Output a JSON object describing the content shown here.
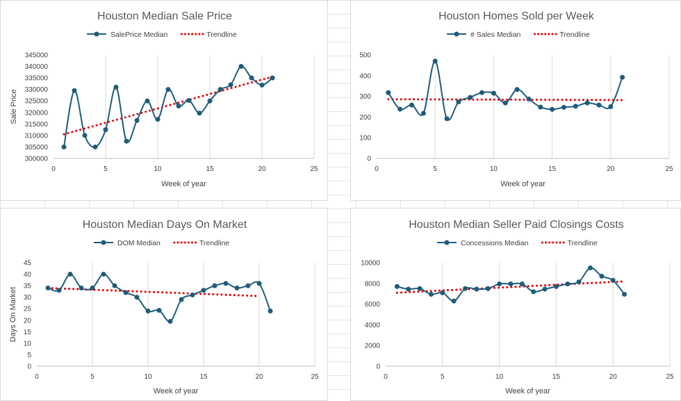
{
  "chart_data": [
    {
      "type": "line",
      "title": "Houston Median Sale Price",
      "xlabel": "Week of year",
      "ylabel": "Sale Price",
      "xlim": [
        0,
        25
      ],
      "ylim": [
        300000,
        345000
      ],
      "xticks": [
        0,
        5,
        10,
        15,
        20,
        25
      ],
      "yticks": [
        300000,
        305000,
        310000,
        315000,
        320000,
        325000,
        330000,
        335000,
        340000,
        345000
      ],
      "grid": "vertical",
      "legend": "top-center",
      "x": [
        1,
        2,
        3,
        4,
        5,
        6,
        7,
        8,
        9,
        10,
        11,
        12,
        13,
        14,
        15,
        16,
        17,
        18,
        19,
        20,
        21
      ],
      "series": [
        {
          "name": "SalePrice Median",
          "style": "line-markers",
          "color": "#1f5c7a",
          "values": [
            305000,
            329500,
            310000,
            305000,
            312500,
            331000,
            307500,
            316500,
            325000,
            317000,
            330000,
            322800,
            325200,
            319700,
            325000,
            330000,
            332000,
            340000,
            335000,
            331900,
            335000
          ]
        },
        {
          "name": "Trendline",
          "style": "dotted",
          "color": "#e00000",
          "x": [
            1,
            21
          ],
          "values": [
            310500,
            335500
          ]
        }
      ]
    },
    {
      "type": "line",
      "title": "Houston Homes Sold per Week",
      "xlabel": "Week of year",
      "ylabel": "",
      "xlim": [
        0,
        25
      ],
      "ylim": [
        0,
        500
      ],
      "xticks": [
        0,
        5,
        10,
        15,
        20,
        25
      ],
      "yticks": [
        0,
        100,
        200,
        300,
        400,
        500
      ],
      "grid": "vertical",
      "legend": "top-center",
      "x": [
        1,
        2,
        3,
        4,
        5,
        6,
        7,
        8,
        9,
        10,
        11,
        12,
        13,
        14,
        15,
        16,
        17,
        18,
        19,
        20,
        21
      ],
      "series": [
        {
          "name": "# Sales Median",
          "style": "line-markers",
          "color": "#1f5c7a",
          "values": [
            318,
            238,
            258,
            218,
            470,
            192,
            273,
            295,
            318,
            315,
            268,
            333,
            287,
            248,
            237,
            247,
            252,
            268,
            258,
            250,
            392
          ]
        },
        {
          "name": "Trendline",
          "style": "dotted",
          "color": "#e00000",
          "x": [
            1,
            21
          ],
          "values": [
            286,
            282
          ]
        }
      ]
    },
    {
      "type": "line",
      "title": "Houston Median Days On Market",
      "xlabel": "Week of year",
      "ylabel": "Days On Market",
      "xlim": [
        0,
        25
      ],
      "ylim": [
        0,
        45
      ],
      "xticks": [
        0,
        5,
        10,
        15,
        20,
        25
      ],
      "yticks": [
        0,
        5,
        10,
        15,
        20,
        25,
        30,
        35,
        40,
        45
      ],
      "grid": "vertical",
      "legend": "top-center",
      "x": [
        1,
        2,
        3,
        4,
        5,
        6,
        7,
        8,
        9,
        10,
        11,
        12,
        13,
        14,
        15,
        16,
        17,
        18,
        19,
        20,
        21
      ],
      "series": [
        {
          "name": "DOM Median",
          "style": "line-markers",
          "color": "#1f5c7a",
          "values": [
            34,
            33,
            40,
            34,
            34,
            40,
            35,
            32,
            30,
            24,
            24.3,
            19.5,
            29,
            31,
            33,
            35,
            36,
            34,
            35,
            36,
            24
          ]
        },
        {
          "name": "Trendline",
          "style": "dotted",
          "color": "#e00000",
          "x": [
            1,
            20
          ],
          "values": [
            34,
            30.5
          ]
        }
      ]
    },
    {
      "type": "line",
      "title": "Houston Median Seller Paid Closings Costs",
      "xlabel": "Week of year",
      "ylabel": "",
      "xlim": [
        0,
        25
      ],
      "ylim": [
        0,
        10000
      ],
      "xticks": [
        0,
        5,
        10,
        15,
        20,
        25
      ],
      "yticks": [
        0,
        2000,
        4000,
        6000,
        8000,
        10000
      ],
      "grid": "vertical",
      "legend": "top-center",
      "x": [
        1,
        2,
        3,
        4,
        5,
        6,
        7,
        8,
        9,
        10,
        11,
        12,
        13,
        14,
        15,
        16,
        17,
        18,
        19,
        20,
        21
      ],
      "series": [
        {
          "name": "Concessions Median",
          "style": "line-markers",
          "color": "#1f5c7a",
          "values": [
            7700,
            7450,
            7500,
            6950,
            7100,
            6300,
            7500,
            7450,
            7500,
            7950,
            7950,
            7950,
            7200,
            7450,
            7700,
            7950,
            8150,
            9500,
            8700,
            8300,
            6950
          ]
        },
        {
          "name": "Trendline",
          "style": "dotted",
          "color": "#e00000",
          "x": [
            1,
            21
          ],
          "values": [
            7100,
            8200
          ]
        }
      ]
    }
  ]
}
